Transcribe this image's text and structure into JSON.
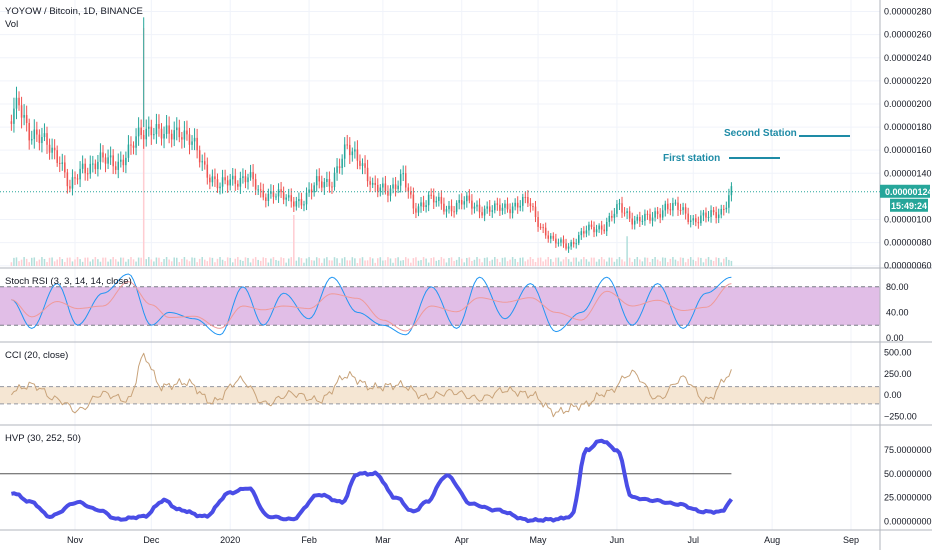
{
  "header": {
    "symbol_title": "YOYOW / Bitcoin, 1D, BINANCE",
    "volume_label": "Vol"
  },
  "colors": {
    "up": "#26a69a",
    "down": "#ef5350",
    "hvp_line": "#4a4de6",
    "stoch_k": "#2196f3",
    "stoch_d": "#ef9a9a",
    "stoch_band": "#e1bee7",
    "cci_band": "#f5e6d3",
    "cci_line": "#c8a37a",
    "current_price_line": "#26a69a",
    "annotation": "#1e8ba6"
  },
  "price_axis": {
    "ticks": [
      "0.00000280",
      "0.00000260",
      "0.00000240",
      "0.00000220",
      "0.00000200",
      "0.00000180",
      "0.00000160",
      "0.00000140",
      "0.00000100",
      "0.00000080",
      "0.00000060"
    ],
    "current_price": "0.00000124",
    "countdown": "15:49:24"
  },
  "x_axis": {
    "ticks": [
      "Nov",
      "Dec",
      "2020",
      "Feb",
      "Mar",
      "Apr",
      "May",
      "Jun",
      "Jul",
      "Aug",
      "Sep"
    ]
  },
  "annotations": {
    "first_station": "First station",
    "second_station": "Second Station"
  },
  "stoch_rsi": {
    "title": "Stoch RSI (3, 3, 14, 14, close)",
    "ticks": [
      "80.00",
      "40.00",
      "0.00"
    ]
  },
  "cci": {
    "title": "CCI (20, close)",
    "ticks": [
      "500.00",
      "250.00",
      "0.00",
      "−250.00"
    ]
  },
  "hvp": {
    "title": "HVP (30, 252, 50)",
    "ticks": [
      "75.00000000",
      "50.00000000",
      "25.00000000",
      "0.00000000"
    ]
  },
  "chart_data": [
    {
      "type": "candlestick",
      "title": "YOYOW / Bitcoin, 1D, BINANCE",
      "x_range": [
        "2019-10-07",
        "2020-07-16"
      ],
      "ylim": [
        5.8e-07,
        2.9e-06
      ],
      "anchors_close": [
        [
          "2019-10-07",
          1.85e-06
        ],
        [
          "2019-10-10",
          2e-06
        ],
        [
          "2019-10-14",
          1.78e-06
        ],
        [
          "2019-10-20",
          1.65e-06
        ],
        [
          "2019-10-26",
          1.55e-06
        ],
        [
          "2019-10-30",
          1.25e-06
        ],
        [
          "2019-11-04",
          1.45e-06
        ],
        [
          "2019-11-10",
          1.5e-06
        ],
        [
          "2019-11-18",
          1.5e-06
        ],
        [
          "2019-11-23",
          1.6e-06
        ],
        [
          "2019-11-27",
          1.75e-06
        ],
        [
          "2019-12-01",
          1.82e-06
        ],
        [
          "2019-12-06",
          1.7e-06
        ],
        [
          "2019-12-12",
          1.8e-06
        ],
        [
          "2019-12-17",
          1.65e-06
        ],
        [
          "2019-12-22",
          1.45e-06
        ],
        [
          "2019-12-28",
          1.28e-06
        ],
        [
          "2020-01-03",
          1.35e-06
        ],
        [
          "2020-01-08",
          1.38e-06
        ],
        [
          "2020-01-13",
          1.2e-06
        ],
        [
          "2020-01-18",
          1.25e-06
        ],
        [
          "2020-01-24",
          1.15e-06
        ],
        [
          "2020-01-30",
          1.18e-06
        ],
        [
          "2020-02-04",
          1.3e-06
        ],
        [
          "2020-02-10",
          1.35e-06
        ],
        [
          "2020-02-16",
          1.6e-06
        ],
        [
          "2020-02-21",
          1.55e-06
        ],
        [
          "2020-02-26",
          1.25e-06
        ],
        [
          "2020-03-04",
          1.28e-06
        ],
        [
          "2020-03-09",
          1.35e-06
        ],
        [
          "2020-03-13",
          1.1e-06
        ],
        [
          "2020-03-19",
          1.18e-06
        ],
        [
          "2020-03-26",
          1.1e-06
        ],
        [
          "2020-04-02",
          1.15e-06
        ],
        [
          "2020-04-08",
          1.1e-06
        ],
        [
          "2020-04-14",
          1.08e-06
        ],
        [
          "2020-04-20",
          1.12e-06
        ],
        [
          "2020-04-27",
          1.15e-06
        ],
        [
          "2020-05-02",
          9.5e-07
        ],
        [
          "2020-05-07",
          8e-07
        ],
        [
          "2020-05-13",
          7.8e-07
        ],
        [
          "2020-05-20",
          9e-07
        ],
        [
          "2020-05-27",
          9.5e-07
        ],
        [
          "2020-06-02",
          1.1e-06
        ],
        [
          "2020-06-08",
          1e-06
        ],
        [
          "2020-06-14",
          1e-06
        ],
        [
          "2020-06-20",
          1.12e-06
        ],
        [
          "2020-06-26",
          1.08e-06
        ],
        [
          "2020-07-01",
          1e-06
        ],
        [
          "2020-07-07",
          1.02e-06
        ],
        [
          "2020-07-12",
          1.08e-06
        ],
        [
          "2020-07-16",
          1.24e-06
        ]
      ],
      "volume_spikes": [
        [
          "2019-11-28",
          280
        ],
        [
          "2020-01-26",
          60
        ],
        [
          "2020-06-05",
          35
        ]
      ]
    },
    {
      "type": "line",
      "name": "Stoch RSI (3, 3, 14, 14, close)",
      "ylim": [
        0,
        100
      ],
      "band": [
        20,
        80
      ],
      "x": [
        "2019-10-07",
        "2019-10-15",
        "2019-10-25",
        "2019-11-02",
        "2019-11-12",
        "2019-11-22",
        "2019-12-01",
        "2019-12-08",
        "2019-12-18",
        "2019-12-28",
        "2020-01-06",
        "2020-01-14",
        "2020-01-22",
        "2020-02-01",
        "2020-02-10",
        "2020-02-20",
        "2020-03-01",
        "2020-03-10",
        "2020-03-20",
        "2020-03-30",
        "2020-04-08",
        "2020-04-18",
        "2020-04-28",
        "2020-05-08",
        "2020-05-18",
        "2020-05-28",
        "2020-06-07",
        "2020-06-17",
        "2020-06-27",
        "2020-07-06",
        "2020-07-16"
      ],
      "values": [
        60,
        15,
        85,
        20,
        70,
        100,
        20,
        40,
        30,
        5,
        80,
        20,
        70,
        30,
        95,
        40,
        20,
        5,
        80,
        15,
        95,
        30,
        85,
        10,
        40,
        95,
        20,
        85,
        15,
        70,
        95
      ]
    },
    {
      "type": "line",
      "name": "CCI (20, close)",
      "ylim": [
        -300,
        550
      ],
      "band": [
        -100,
        100
      ],
      "x": [
        "2019-10-07",
        "2019-10-15",
        "2019-10-25",
        "2019-11-02",
        "2019-11-12",
        "2019-11-22",
        "2019-11-28",
        "2019-12-05",
        "2019-12-15",
        "2019-12-25",
        "2020-01-05",
        "2020-01-15",
        "2020-01-25",
        "2020-02-05",
        "2020-02-16",
        "2020-02-26",
        "2020-03-08",
        "2020-03-18",
        "2020-03-28",
        "2020-04-08",
        "2020-04-18",
        "2020-04-28",
        "2020-05-08",
        "2020-05-18",
        "2020-05-28",
        "2020-06-07",
        "2020-06-17",
        "2020-06-27",
        "2020-07-06",
        "2020-07-16"
      ],
      "values": [
        50,
        120,
        -50,
        -180,
        20,
        -60,
        450,
        100,
        150,
        -80,
        180,
        -100,
        20,
        -60,
        230,
        90,
        120,
        -20,
        40,
        -40,
        60,
        10,
        -200,
        -120,
        30,
        260,
        -40,
        200,
        -60,
        250
      ]
    },
    {
      "type": "line",
      "name": "HVP (30, 252, 50)",
      "ylim": [
        -5,
        95
      ],
      "reference_line": 50,
      "x": [
        "2019-10-07",
        "2019-10-15",
        "2019-10-22",
        "2019-11-02",
        "2019-11-10",
        "2019-11-18",
        "2019-11-28",
        "2019-12-06",
        "2019-12-12",
        "2019-12-22",
        "2020-01-01",
        "2020-01-08",
        "2020-01-16",
        "2020-01-25",
        "2020-02-05",
        "2020-02-14",
        "2020-02-20",
        "2020-02-27",
        "2020-03-06",
        "2020-03-13",
        "2020-03-18",
        "2020-03-26",
        "2020-04-05",
        "2020-04-14",
        "2020-04-28",
        "2020-05-08",
        "2020-05-14",
        "2020-05-20",
        "2020-05-26",
        "2020-06-01",
        "2020-06-07",
        "2020-06-15",
        "2020-06-25",
        "2020-07-05",
        "2020-07-12",
        "2020-07-16"
      ],
      "values": [
        30,
        20,
        5,
        20,
        12,
        2,
        5,
        22,
        12,
        5,
        30,
        35,
        5,
        2,
        28,
        20,
        50,
        50,
        25,
        10,
        20,
        48,
        18,
        12,
        1,
        2,
        5,
        75,
        85,
        75,
        25,
        22,
        18,
        10,
        10,
        22
      ]
    }
  ]
}
